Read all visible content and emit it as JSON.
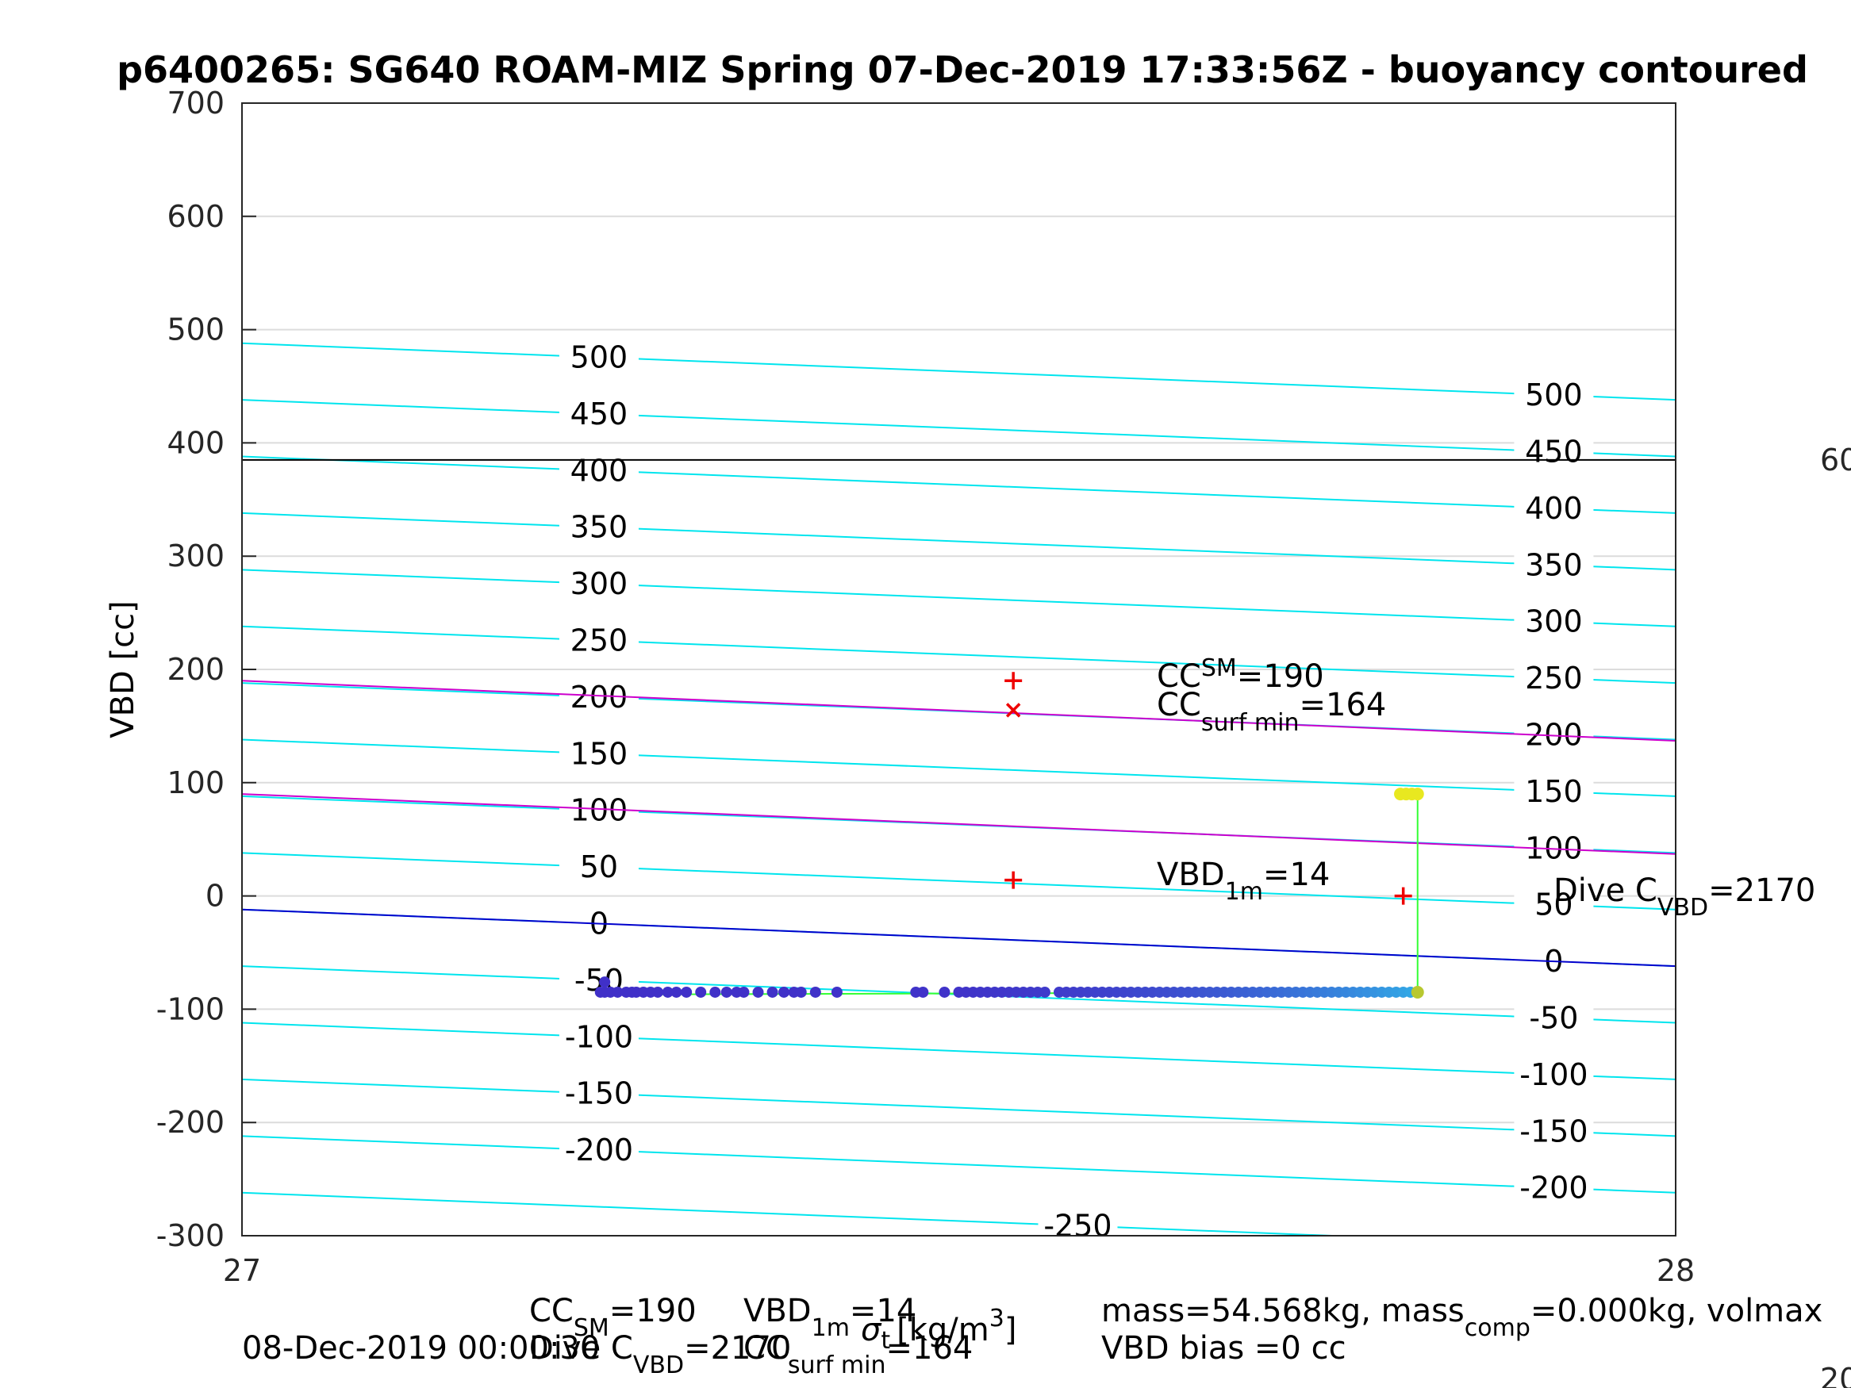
{
  "chart_data": {
    "type": "scatter",
    "title": "p6400265: SG640 ROAM-MIZ Spring 07-Dec-2019 17:33:56Z - buoyancy contoured",
    "ylabel": "VBD [cc]",
    "xlabel_sigma": "σ",
    "xlabel_sub": "t",
    "xlabel_units": "[kg/m",
    "xlabel_exp": "3",
    "xlabel_close": "]",
    "xlim": [
      27,
      28
    ],
    "ylim": [
      -300,
      700
    ],
    "xticks": [
      "27",
      "28"
    ],
    "yticks": [
      "-300",
      "-200",
      "-100",
      "0",
      "100",
      "200",
      "300",
      "400",
      "500",
      "600",
      "700"
    ],
    "grid": true,
    "contours": {
      "levels": [
        -250,
        -200,
        -150,
        -100,
        -50,
        0,
        50,
        100,
        150,
        200,
        250,
        300,
        350,
        400,
        450,
        500
      ],
      "labels_left": [
        "-200",
        "-150",
        "-100",
        "-50",
        "0",
        "50",
        "100",
        "150",
        "200",
        "250",
        "300",
        "350",
        "400",
        "450",
        "500"
      ],
      "labels_right": [
        "-200",
        "-150",
        "-100",
        "-50",
        "0",
        "50",
        "100",
        "150",
        "200",
        "250",
        "300",
        "350",
        "400",
        "450",
        "500"
      ],
      "label_bottom": "-250",
      "y_at_27_for_level_0": -12,
      "y_at_28_for_level_0": -62,
      "color": "#00e5ee"
    },
    "highlight_lines": [
      {
        "color": "#cc00cc",
        "y_at_27": 190,
        "y_at_28": 137
      },
      {
        "color": "#cc00cc",
        "y_at_27": 90,
        "y_at_28": 37
      },
      {
        "color": "#0000cc",
        "y_at_27": -12,
        "y_at_28": -62
      }
    ],
    "horizontal_line": {
      "y": 385,
      "color": "#000000",
      "right_label": "60"
    },
    "markers": [
      {
        "kind": "plus",
        "x": 27.538,
        "y": 190
      },
      {
        "kind": "x",
        "x": 27.538,
        "y": 164
      },
      {
        "kind": "plus",
        "x": 27.538,
        "y": 14
      },
      {
        "kind": "plus",
        "x": 27.81,
        "y": 0
      }
    ],
    "annotations": {
      "cc_sm": {
        "base": "CC",
        "sup": "SM",
        "value": "=190"
      },
      "cc_surf": {
        "base": "CC",
        "sub": "surf min",
        "value": "=164"
      },
      "vbd_1m": {
        "base": "VBD",
        "sub": "1m",
        "value": "=14"
      },
      "dive_c": {
        "base": "Dive C",
        "sub": "VBD",
        "value": "=2170"
      }
    },
    "trace": {
      "color": "#33ff33",
      "path": [
        [
          27.25,
          -87
        ],
        [
          27.82,
          -85
        ],
        [
          27.82,
          90
        ],
        [
          27.81,
          90
        ]
      ],
      "points_x": [
        27.25,
        27.253,
        27.257,
        27.262,
        27.268,
        27.272,
        27.275,
        27.28,
        27.285,
        27.29,
        27.297,
        27.303,
        27.31,
        27.32,
        27.33,
        27.338,
        27.345,
        27.35,
        27.36,
        27.37,
        27.378,
        27.385,
        27.39,
        27.4,
        27.415,
        27.47,
        27.475,
        27.49,
        27.5,
        27.505,
        27.51,
        27.515,
        27.52,
        27.525,
        27.53,
        27.535,
        27.54,
        27.545,
        27.55,
        27.555,
        27.56,
        27.57,
        27.575,
        27.58,
        27.585,
        27.59,
        27.595,
        27.6,
        27.605,
        27.61,
        27.615,
        27.62,
        27.625,
        27.63,
        27.635,
        27.64,
        27.645,
        27.65,
        27.655,
        27.66,
        27.665,
        27.67,
        27.675,
        27.68,
        27.685,
        27.69,
        27.695,
        27.7,
        27.705,
        27.71,
        27.715,
        27.72,
        27.725,
        27.73,
        27.735,
        27.74,
        27.745,
        27.75,
        27.755,
        27.76,
        27.765,
        27.77,
        27.775,
        27.78,
        27.785,
        27.79,
        27.795,
        27.8,
        27.805,
        27.81,
        27.815,
        27.82
      ],
      "points_y_default": -85,
      "first_point": {
        "x": 27.253,
        "y": -76
      },
      "surface_points_x": [
        27.808,
        27.812,
        27.816,
        27.82
      ],
      "surface_y": 90
    }
  },
  "footer": {
    "date": "08-Dec-2019 00:00:30",
    "cc_sm_base": "CC",
    "cc_sm_sub": "SM",
    "cc_sm_val": "=190",
    "vbd1m_base": "VBD",
    "vbd1m_sub": "1m",
    "vbd1m_val": "=14",
    "divec_base": "Dive C",
    "divec_sub": "VBD",
    "divec_val": "=2170",
    "ccsurf_base": "CC",
    "ccsurf_sub": "surf min",
    "ccsurf_val": "=164",
    "mass_text": "mass=54.568kg, mass",
    "mass_sub": "comp",
    "mass_rest": "=0.000kg, volmax",
    "vbd_bias": "VBD bias =0 cc",
    "corner": "20"
  }
}
